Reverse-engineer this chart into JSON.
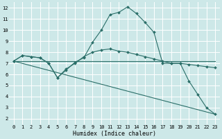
{
  "xlabel": "Humidex (Indice chaleur)",
  "bg_color": "#cde8e8",
  "grid_color": "#ffffff",
  "line_color": "#2a6e68",
  "xlim": [
    -0.5,
    23.5
  ],
  "ylim": [
    1.5,
    12.5
  ],
  "xticks": [
    0,
    1,
    2,
    3,
    4,
    5,
    6,
    7,
    8,
    9,
    10,
    11,
    12,
    13,
    14,
    15,
    16,
    17,
    18,
    19,
    20,
    21,
    22,
    23
  ],
  "yticks": [
    2,
    3,
    4,
    5,
    6,
    7,
    8,
    9,
    10,
    11,
    12
  ],
  "line1_x": [
    0,
    1,
    2,
    3,
    4,
    5,
    6,
    7,
    8,
    9,
    10,
    11,
    12,
    13,
    14,
    15,
    16,
    17,
    18,
    19,
    20,
    21,
    22,
    23
  ],
  "line1_y": [
    7.2,
    7.7,
    7.6,
    7.5,
    7.0,
    5.7,
    6.4,
    7.1,
    7.5,
    8.9,
    10.0,
    11.4,
    11.6,
    12.1,
    11.5,
    10.7,
    9.8,
    7.0,
    7.0,
    7.0,
    5.4,
    4.2,
    3.0,
    2.4
  ],
  "line2_x": [
    0,
    1,
    2,
    3,
    4,
    5,
    6,
    7,
    8,
    9,
    10,
    11,
    12,
    13,
    14,
    15,
    16,
    17,
    18,
    19,
    20,
    21,
    22,
    23
  ],
  "line2_y": [
    7.2,
    7.7,
    7.6,
    7.5,
    7.0,
    5.7,
    6.5,
    7.0,
    7.6,
    8.0,
    8.2,
    8.3,
    8.1,
    8.0,
    7.8,
    7.6,
    7.4,
    7.2,
    7.0,
    7.0,
    6.9,
    6.8,
    6.7,
    6.6
  ],
  "line3_x": [
    0,
    23
  ],
  "line3_y": [
    7.2,
    7.2
  ],
  "line4_x": [
    0,
    23
  ],
  "line4_y": [
    7.2,
    2.4
  ],
  "xlabel_fontsize": 6,
  "tick_fontsize": 5
}
